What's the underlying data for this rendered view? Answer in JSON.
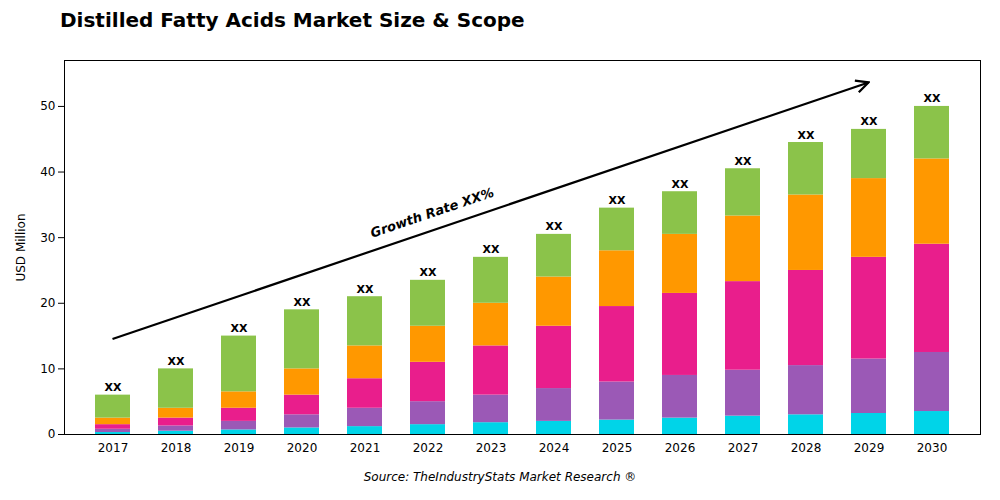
{
  "chart_data": {
    "type": "bar",
    "title": "Distilled Fatty Acids Market Size & Scope",
    "caption": "Source: TheIndustryStats Market Research ®",
    "ylabel": "USD Million",
    "stacked": true,
    "categories": [
      "2017",
      "2018",
      "2019",
      "2020",
      "2021",
      "2022",
      "2023",
      "2024",
      "2025",
      "2026",
      "2027",
      "2028",
      "2029",
      "2030"
    ],
    "series": [
      {
        "color": "#00d4e8",
        "values": [
          0.3,
          0.5,
          0.7,
          1.0,
          1.2,
          1.5,
          1.8,
          2.0,
          2.2,
          2.5,
          2.8,
          3.0,
          3.2,
          3.5
        ]
      },
      {
        "color": "#9b59b6",
        "values": [
          0.5,
          0.8,
          1.3,
          2.0,
          2.8,
          3.5,
          4.2,
          5.0,
          5.8,
          6.5,
          7.0,
          7.5,
          8.3,
          9.0
        ]
      },
      {
        "color": "#e91e8c",
        "values": [
          0.7,
          1.2,
          2.0,
          3.0,
          4.5,
          6.0,
          7.5,
          9.5,
          11.5,
          12.5,
          13.5,
          14.5,
          15.5,
          16.5
        ]
      },
      {
        "color": "#ff9800",
        "values": [
          1.0,
          1.5,
          2.5,
          4.0,
          5.0,
          5.5,
          6.5,
          7.5,
          8.5,
          9.0,
          10.0,
          11.5,
          12.0,
          13.0
        ]
      },
      {
        "color": "#8bc34a",
        "values": [
          3.5,
          6.0,
          8.5,
          9.0,
          7.5,
          7.0,
          7.0,
          6.5,
          6.5,
          6.5,
          7.2,
          8.0,
          7.5,
          8.0
        ]
      }
    ],
    "annotations": [
      {
        "text": "XX",
        "x": "2017"
      },
      {
        "text": "XX",
        "x": "2018"
      },
      {
        "text": "XX",
        "x": "2019"
      },
      {
        "text": "XX",
        "x": "2020"
      },
      {
        "text": "XX",
        "x": "2021"
      },
      {
        "text": "XX",
        "x": "2022"
      },
      {
        "text": "XX",
        "x": "2023"
      },
      {
        "text": "XX",
        "x": "2024"
      },
      {
        "text": "XX",
        "x": "2025"
      },
      {
        "text": "XX",
        "x": "2026"
      },
      {
        "text": "XX",
        "x": "2027"
      },
      {
        "text": "XX",
        "x": "2028"
      },
      {
        "text": "XX",
        "x": "2029"
      },
      {
        "text": "XX",
        "x": "2030"
      },
      {
        "text": "Growth Rate XX%"
      }
    ],
    "ylim": [
      0,
      57
    ],
    "yticks": [
      0,
      10,
      20,
      30,
      40,
      50
    ],
    "grid": false
  }
}
